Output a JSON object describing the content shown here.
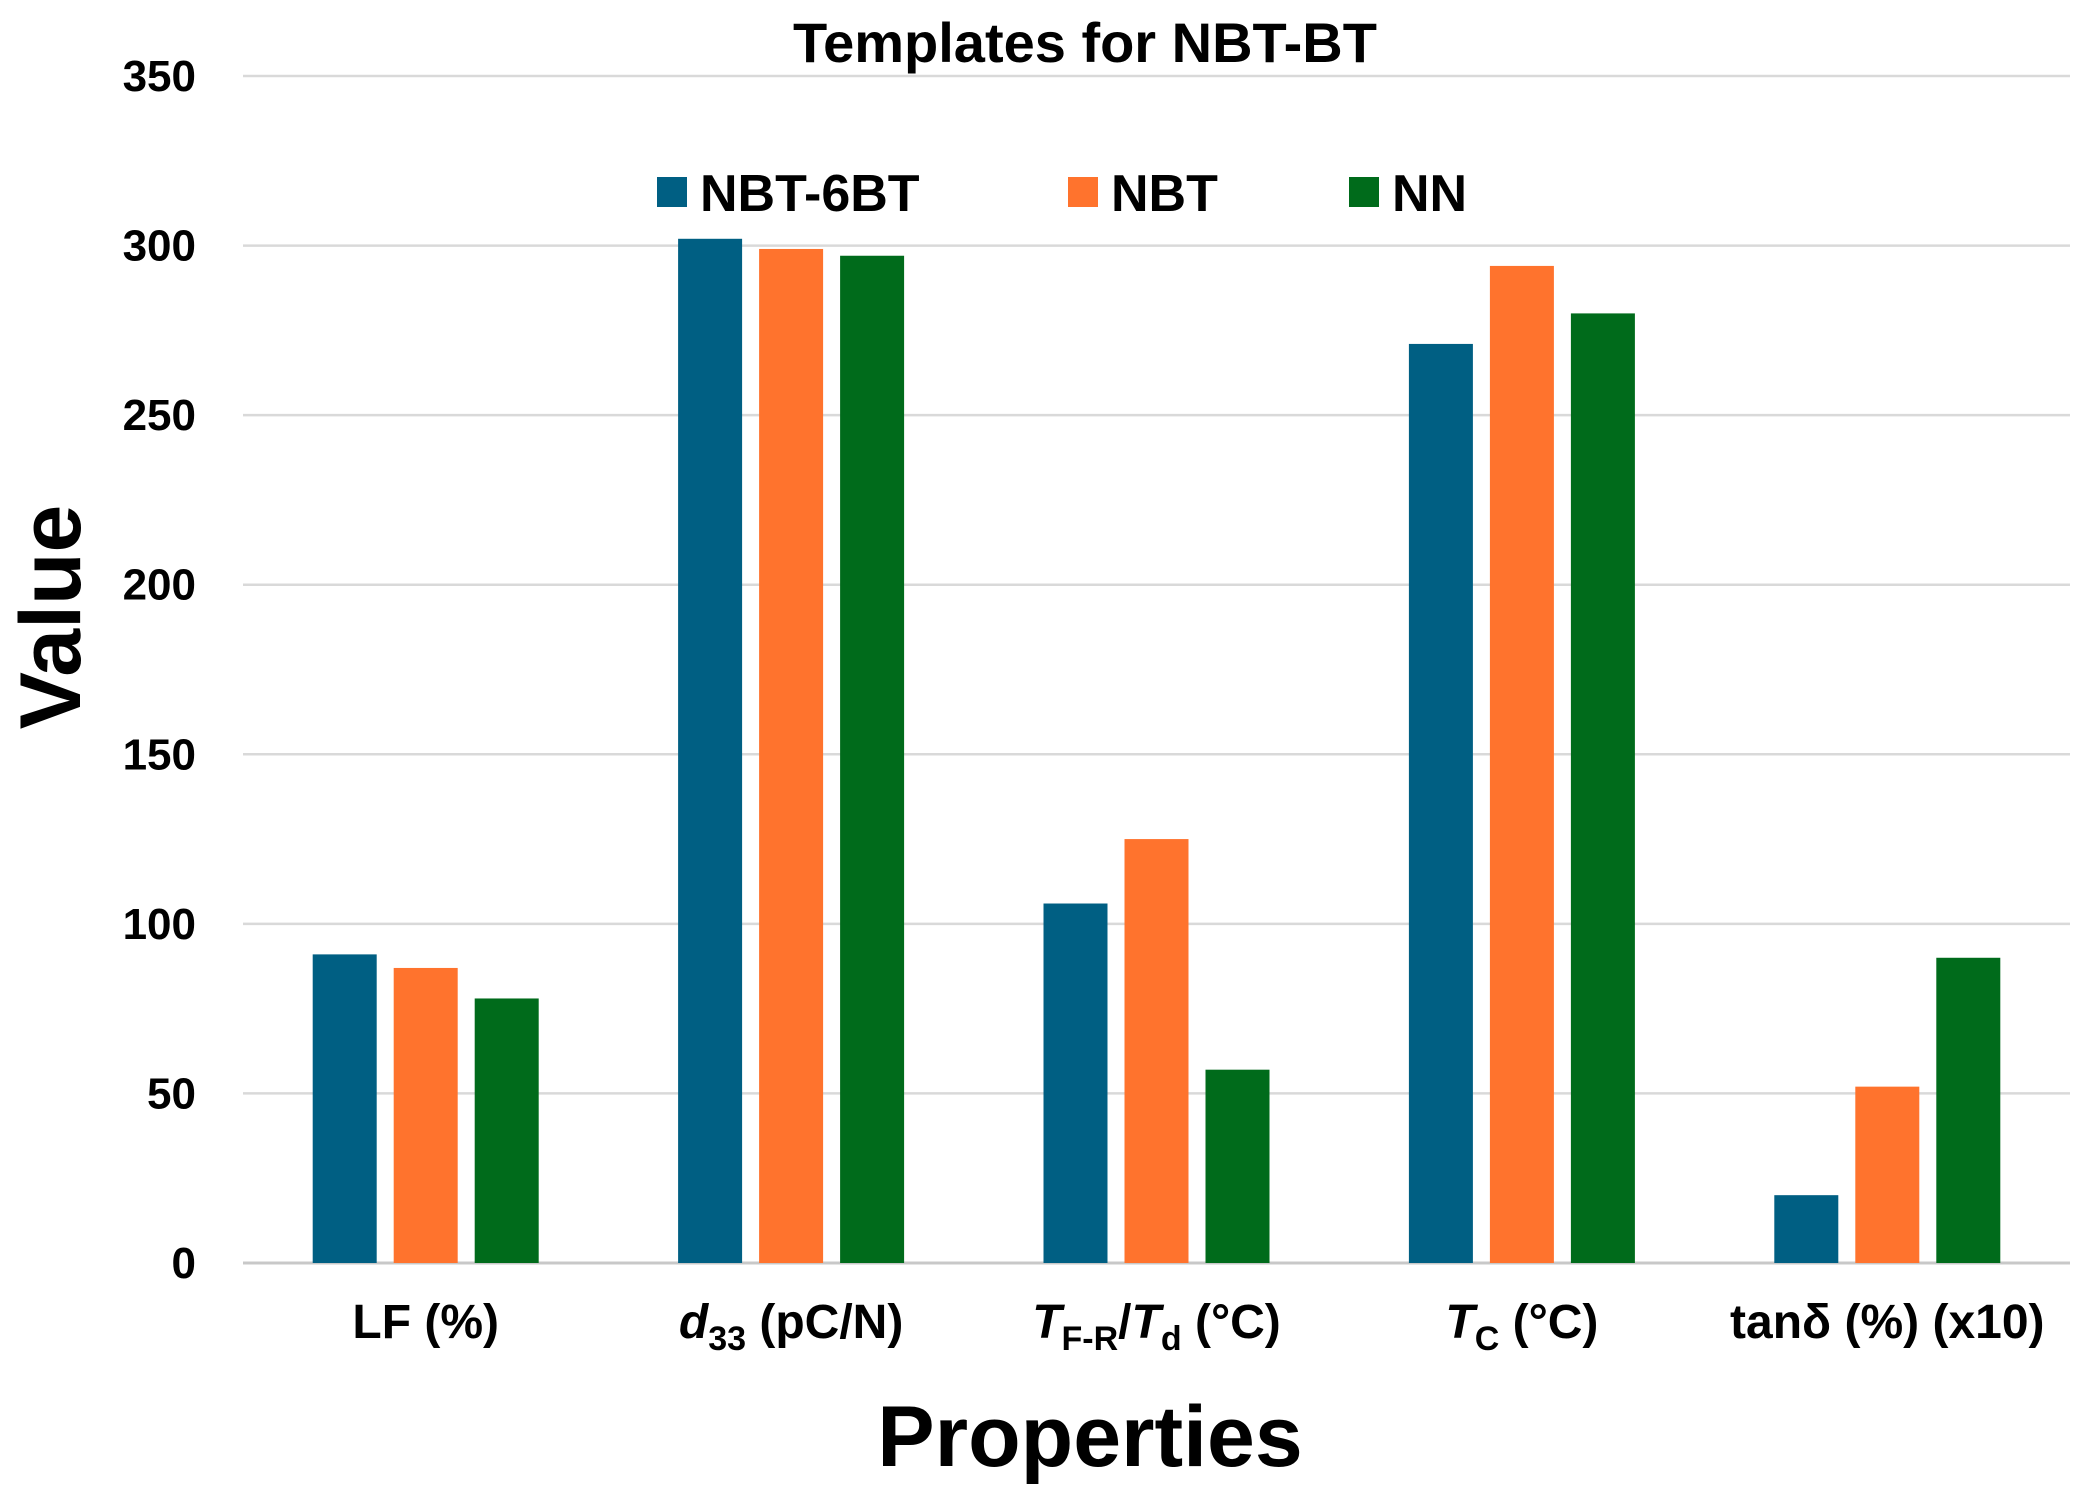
{
  "chart_data": {
    "type": "bar",
    "title": "Templates for NBT-BT",
    "xlabel": "Properties",
    "ylabel": "Value",
    "ylim": [
      0,
      350
    ],
    "yticks": [
      "0",
      "50",
      "100",
      "150",
      "200",
      "250",
      "300",
      "350"
    ],
    "grid": true,
    "legend_position": "top-center",
    "categories": [
      {
        "key": "LF",
        "parts": [
          {
            "t": "LF (%)"
          }
        ]
      },
      {
        "key": "d33",
        "parts": [
          {
            "t": "d",
            "style": "italic"
          },
          {
            "t": "33",
            "style": "sub"
          },
          {
            "t": " (pC/N)"
          }
        ]
      },
      {
        "key": "TFR_Td",
        "parts": [
          {
            "t": "T",
            "style": "italic"
          },
          {
            "t": "F-R",
            "style": "sub"
          },
          {
            "t": "/"
          },
          {
            "t": "T",
            "style": "italic"
          },
          {
            "t": "d",
            "style": "sub"
          },
          {
            "t": " (°C)"
          }
        ]
      },
      {
        "key": "TC",
        "parts": [
          {
            "t": "T",
            "style": "italic"
          },
          {
            "t": "C",
            "style": "sub"
          },
          {
            "t": " (°C)"
          }
        ]
      },
      {
        "key": "tand",
        "parts": [
          {
            "t": "tanδ (%) (x10)"
          }
        ]
      }
    ],
    "series": [
      {
        "name": "NBT-6BT",
        "color": "#005f83",
        "values": [
          91,
          302,
          106,
          271,
          20
        ]
      },
      {
        "name": "NBT",
        "color": "#ff732d",
        "values": [
          87,
          299,
          125,
          294,
          52
        ]
      },
      {
        "name": "NN",
        "color": "#006b1b",
        "values": [
          78,
          297,
          57,
          280,
          90
        ]
      }
    ]
  }
}
